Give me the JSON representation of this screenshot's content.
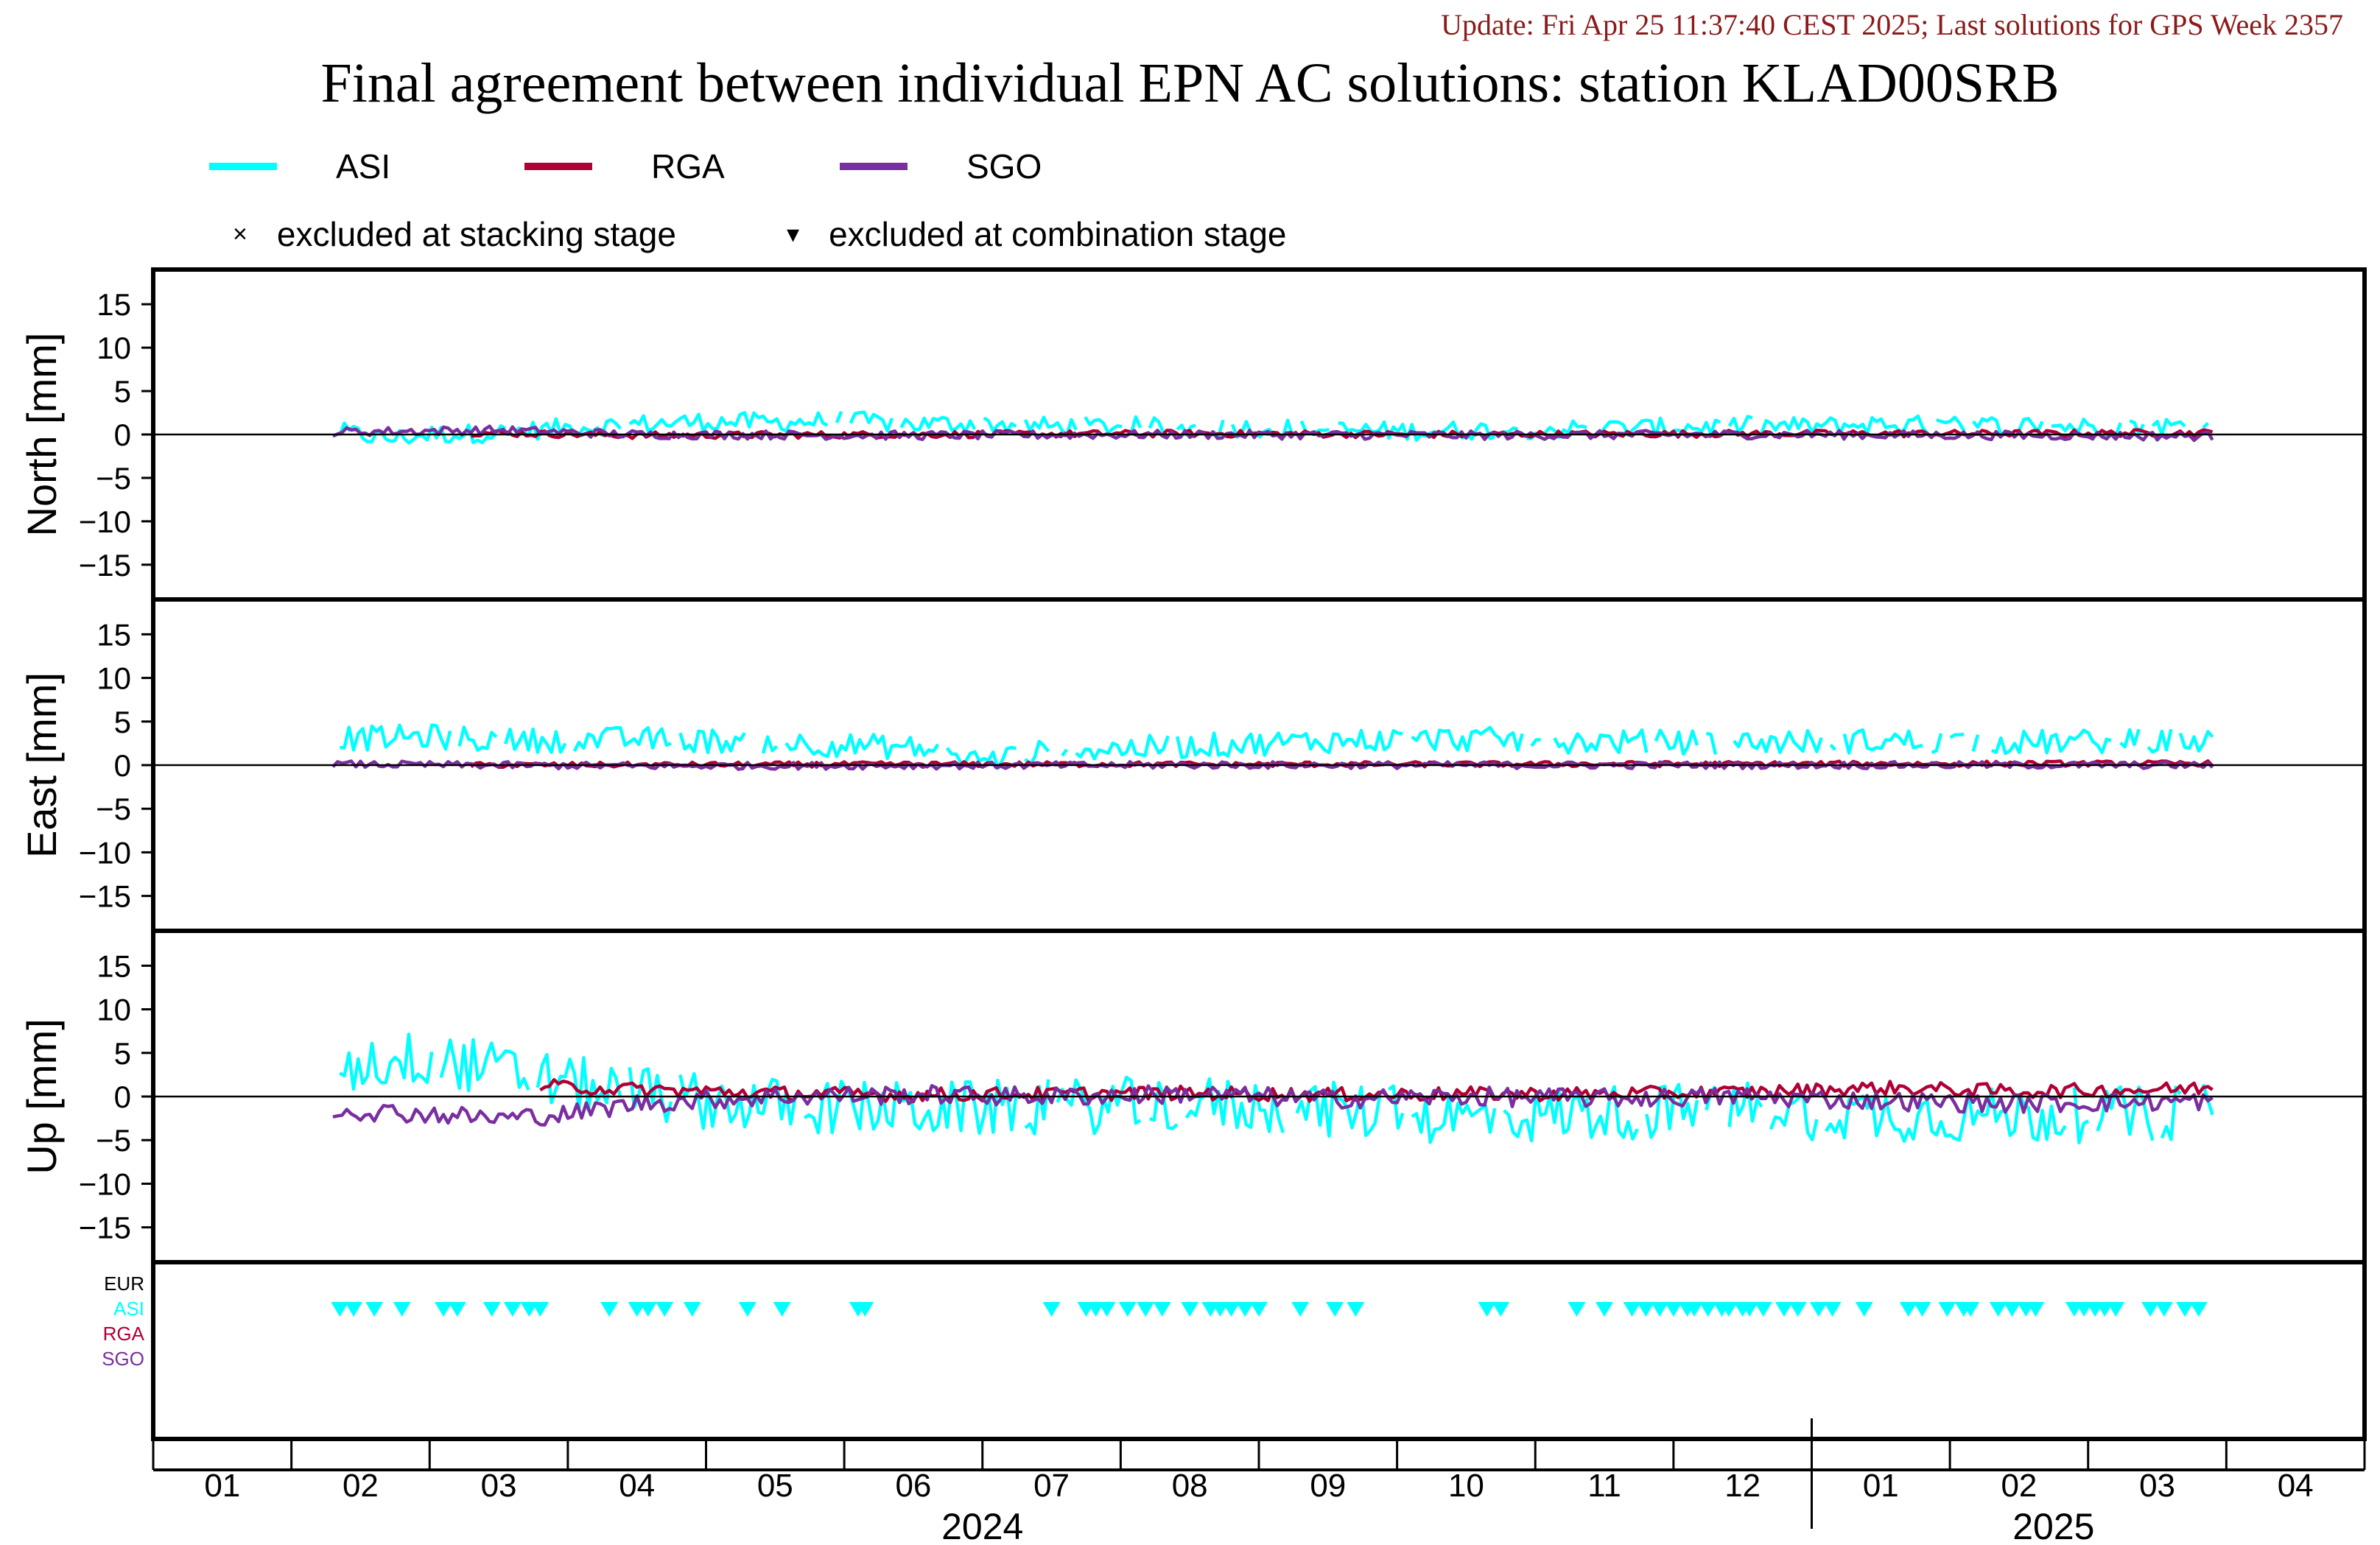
{
  "header": {
    "update": "Update: Fri Apr 25 11:37:40 CEST 2025; Last solutions for GPS Week 2357",
    "title": "Final agreement between individual EPN AC solutions: station KLAD00SRB"
  },
  "legend": {
    "series": [
      {
        "name": "ASI",
        "color": "#00ffff"
      },
      {
        "name": "RGA",
        "color": "#b00035"
      },
      {
        "name": "SGO",
        "color": "#7a2fa0"
      }
    ],
    "markers": [
      {
        "symbol": "×",
        "label": "excluded at stacking stage"
      },
      {
        "symbol": "▾",
        "label": "excluded at combination stage"
      }
    ]
  },
  "chart_data": {
    "type": "line",
    "panels": [
      {
        "name": "North",
        "ylabel": "North [mm]",
        "ylim": [
          -19,
          19
        ],
        "yticks": [
          15,
          10,
          5,
          0,
          -5,
          -10,
          -15
        ],
        "series": [
          {
            "name": "ASI",
            "x_start": 1.85,
            "x_end": 15.4,
            "points": [
              [
                1.85,
                0.3
              ],
              [
                2.2,
                -0.5
              ],
              [
                2.5,
                0
              ],
              [
                3,
                0.2
              ],
              [
                3.5,
                0.8
              ],
              [
                4,
                1.2
              ],
              [
                4.5,
                1.5
              ],
              [
                5,
                1.4
              ],
              [
                5.5,
                1.6
              ],
              [
                6,
                1.2
              ],
              [
                6.5,
                1.3
              ],
              [
                7,
                0.9
              ],
              [
                7.5,
                1.0
              ],
              [
                8,
                0.7
              ],
              [
                8.5,
                0.8
              ],
              [
                9,
                0.5
              ],
              [
                9.5,
                0.4
              ],
              [
                10,
                0.5
              ],
              [
                10.5,
                0.6
              ],
              [
                11,
                0.7
              ],
              [
                11.5,
                0.8
              ],
              [
                12,
                1.0
              ],
              [
                12.5,
                0.9
              ],
              [
                13,
                1.2
              ],
              [
                13.5,
                1.0
              ],
              [
                14,
                1.1
              ],
              [
                14.5,
                0.9
              ],
              [
                15,
                1.0
              ],
              [
                15.4,
                0.8
              ]
            ],
            "noise": 1.1
          },
          {
            "name": "RGA",
            "x_start": 2.8,
            "x_end": 15.4,
            "points": [
              [
                2.8,
                0.2
              ],
              [
                4,
                -0.1
              ],
              [
                6,
                0.0
              ],
              [
                8,
                0.1
              ],
              [
                10,
                0.0
              ],
              [
                12,
                0.1
              ],
              [
                14,
                0.1
              ],
              [
                15.4,
                0.2
              ]
            ],
            "noise": 0.4
          },
          {
            "name": "SGO",
            "x_start": 1.8,
            "x_end": 15.4,
            "points": [
              [
                1.8,
                0.3
              ],
              [
                3,
                0.5
              ],
              [
                4,
                0.0
              ],
              [
                6,
                -0.1
              ],
              [
                8,
                0.0
              ],
              [
                10,
                -0.1
              ],
              [
                12,
                0.0
              ],
              [
                14,
                -0.1
              ],
              [
                15.4,
                -0.2
              ]
            ],
            "noise": 0.5
          }
        ]
      },
      {
        "name": "East",
        "ylabel": "East [mm]",
        "ylim": [
          -19,
          19
        ],
        "yticks": [
          15,
          10,
          5,
          0,
          -5,
          -10,
          -15
        ],
        "series": [
          {
            "name": "ASI",
            "x_start": 1.85,
            "x_end": 15.4,
            "points": [
              [
                1.85,
                3.0
              ],
              [
                2.5,
                3.3
              ],
              [
                3,
                2.8
              ],
              [
                4,
                3.0
              ],
              [
                5,
                2.6
              ],
              [
                6,
                2.0
              ],
              [
                6.5,
                0.5
              ],
              [
                7,
                1.6
              ],
              [
                8,
                2.2
              ],
              [
                9,
                2.8
              ],
              [
                10,
                3.0
              ],
              [
                11,
                2.7
              ],
              [
                12,
                2.6
              ],
              [
                13,
                2.8
              ],
              [
                14,
                2.6
              ],
              [
                15,
                2.8
              ],
              [
                15.4,
                2.6
              ]
            ],
            "noise": 1.4
          },
          {
            "name": "RGA",
            "x_start": 2.8,
            "x_end": 15.4,
            "points": [
              [
                2.8,
                0.0
              ],
              [
                6,
                0.1
              ],
              [
                10,
                0.1
              ],
              [
                15.4,
                0.2
              ]
            ],
            "noise": 0.3
          },
          {
            "name": "SGO",
            "x_start": 1.8,
            "x_end": 15.4,
            "points": [
              [
                1.8,
                0.1
              ],
              [
                4,
                -0.1
              ],
              [
                8,
                0.0
              ],
              [
                12,
                0.0
              ],
              [
                15.4,
                0.0
              ]
            ],
            "noise": 0.4
          }
        ]
      },
      {
        "name": "Up",
        "ylabel": "Up [mm]",
        "ylim": [
          -19,
          19
        ],
        "yticks": [
          15,
          10,
          5,
          0,
          -5,
          -10,
          -15
        ],
        "series": [
          {
            "name": "ASI",
            "x_start": 1.85,
            "x_end": 15.4,
            "points": [
              [
                1.85,
                3.5
              ],
              [
                2.5,
                4.5
              ],
              [
                3,
                3.0
              ],
              [
                3.5,
                1.5
              ],
              [
                4,
                0.5
              ],
              [
                4.5,
                -0.5
              ],
              [
                5,
                -1.0
              ],
              [
                6,
                -1.5
              ],
              [
                7,
                -1.2
              ],
              [
                8,
                -0.8
              ],
              [
                9,
                -1.5
              ],
              [
                10,
                -2.5
              ],
              [
                11,
                -1.8
              ],
              [
                12,
                -1.5
              ],
              [
                13,
                -2.0
              ],
              [
                14,
                -2.2
              ],
              [
                15,
                -2.0
              ],
              [
                15.4,
                -1.5
              ]
            ],
            "noise": 3.2
          },
          {
            "name": "RGA",
            "x_start": 3.3,
            "x_end": 15.4,
            "points": [
              [
                3.3,
                1.2
              ],
              [
                4,
                0.8
              ],
              [
                5,
                0.4
              ],
              [
                6,
                0.2
              ],
              [
                7,
                0.3
              ],
              [
                8,
                0.4
              ],
              [
                9,
                0.2
              ],
              [
                10,
                0.3
              ],
              [
                11,
                0.3
              ],
              [
                12,
                0.5
              ],
              [
                13,
                1.0
              ],
              [
                14,
                0.6
              ],
              [
                15,
                0.8
              ],
              [
                15.4,
                1.0
              ]
            ],
            "noise": 0.8
          },
          {
            "name": "SGO",
            "x_start": 1.8,
            "x_end": 15.4,
            "points": [
              [
                1.8,
                -1.5
              ],
              [
                2.5,
                -2.0
              ],
              [
                3,
                -2.5
              ],
              [
                3.5,
                -2.0
              ],
              [
                4,
                -0.8
              ],
              [
                5,
                0.0
              ],
              [
                6,
                0.2
              ],
              [
                7,
                0.0
              ],
              [
                8,
                0.3
              ],
              [
                9,
                -0.3
              ],
              [
                10,
                0.0
              ],
              [
                11,
                -0.2
              ],
              [
                12,
                0.0
              ],
              [
                13,
                -0.5
              ],
              [
                14,
                -0.8
              ],
              [
                15,
                -0.6
              ],
              [
                15.4,
                -0.5
              ]
            ],
            "noise": 1.1
          }
        ]
      }
    ],
    "exclusion_panel": {
      "labels": [
        {
          "name": "EUR",
          "color": "#000000"
        },
        {
          "name": "ASI",
          "color": "#00ffff"
        },
        {
          "name": "RGA",
          "color": "#b00035"
        },
        {
          "name": "SGO",
          "color": "#7a2fa0"
        }
      ],
      "asi_combination_exclusions": [
        1.85,
        1.95,
        2.1,
        2.3,
        2.6,
        2.7,
        2.95,
        3.1,
        3.22,
        3.3,
        3.8,
        4.0,
        4.08,
        4.2,
        4.4,
        4.8,
        5.05,
        5.6,
        5.65,
        7.0,
        7.25,
        7.32,
        7.4,
        7.55,
        7.68,
        7.8,
        8.0,
        8.15,
        8.22,
        8.3,
        8.4,
        8.5,
        8.8,
        9.05,
        9.2,
        10.15,
        10.25,
        10.8,
        11.0,
        11.2,
        11.3,
        11.4,
        11.5,
        11.6,
        11.65,
        11.75,
        11.85,
        11.9,
        12.0,
        12.05,
        12.15,
        12.3,
        12.4,
        12.55,
        12.65,
        12.88,
        13.2,
        13.3,
        13.48,
        13.6,
        13.65,
        13.85,
        13.95,
        14.05,
        14.12,
        14.4,
        14.47,
        14.55,
        14.62,
        14.7,
        14.95,
        15.05,
        15.2,
        15.3
      ]
    },
    "xaxis": {
      "xlim": [
        0.5,
        16.5
      ],
      "month_ticks": [
        "01",
        "02",
        "03",
        "04",
        "05",
        "06",
        "07",
        "08",
        "09",
        "10",
        "11",
        "12",
        "01",
        "02",
        "03",
        "04"
      ],
      "years": [
        {
          "label": "2024",
          "center": 6.5
        },
        {
          "label": "2025",
          "center": 14.25
        }
      ],
      "year_boundary": 12.5
    }
  }
}
